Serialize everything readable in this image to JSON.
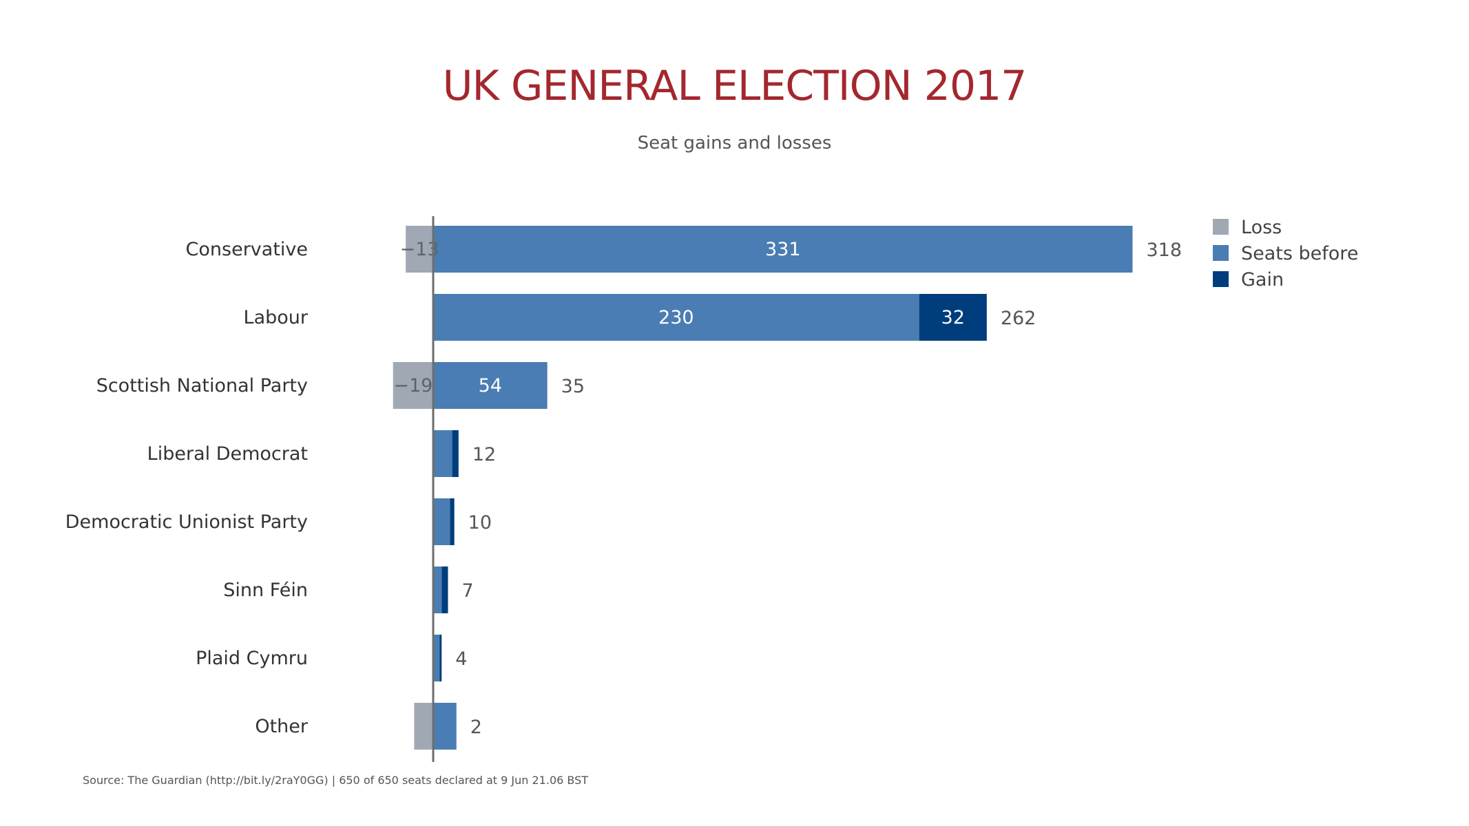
{
  "chart_data": {
    "type": "bar",
    "orientation": "horizontal",
    "stacked": true,
    "title": "UK GENERAL ELECTION 2017",
    "subtitle": "Seat gains and losses",
    "source": "Source: The Guardian (http://bit.ly/2raY0GG) | 650 of 650 seats declared at 9 Jun 21.06 BST",
    "categories": [
      "Conservative",
      "Labour",
      "Scottish National Party",
      "Liberal Democrat",
      "Democratic Unionist Party",
      "Sinn Féin",
      "Plaid Cymru",
      "Other"
    ],
    "series": [
      {
        "name": "Loss",
        "color": "#a0a9b3",
        "values": [
          -13,
          0,
          -19,
          0,
          0,
          0,
          0,
          -9
        ]
      },
      {
        "name": "Seats before",
        "color": "#4a7db3",
        "values": [
          331,
          230,
          54,
          9,
          8,
          4,
          3,
          11
        ]
      },
      {
        "name": "Gain",
        "color": "#003d7c",
        "values": [
          0,
          32,
          0,
          3,
          2,
          3,
          1,
          0
        ]
      }
    ],
    "totals": [
      318,
      262,
      35,
      12,
      10,
      7,
      4,
      2
    ],
    "inside_labels": {
      "Loss": [
        "−13",
        "",
        "−19",
        "",
        "",
        "",
        "",
        ""
      ],
      "Seats before": [
        "331",
        "230",
        "54",
        "",
        "",
        "",
        "",
        ""
      ],
      "Gain": [
        "",
        "32",
        "",
        "",
        "",
        "",
        "",
        ""
      ]
    },
    "legend_position": "top-right",
    "grid": false,
    "axis_visible": false
  }
}
